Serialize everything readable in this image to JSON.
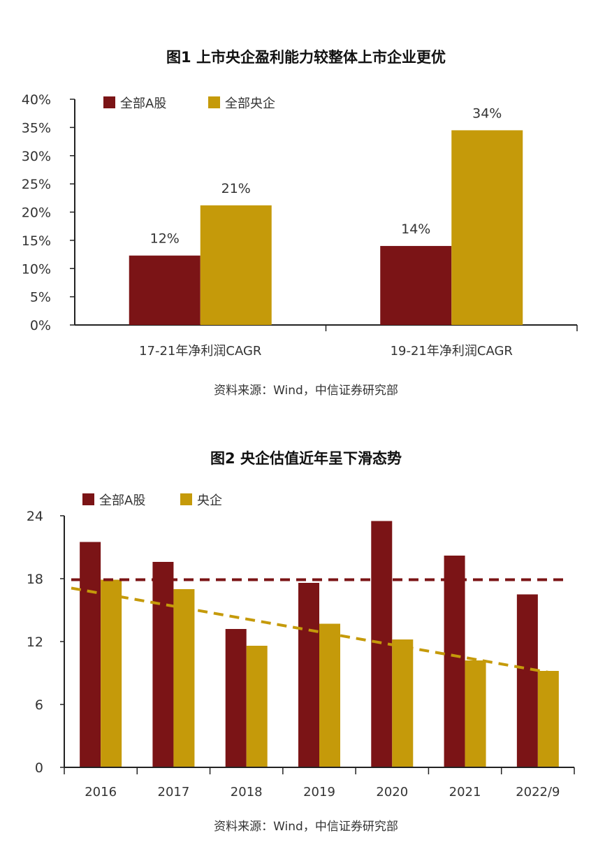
{
  "colors": {
    "a_share": "#7B1416",
    "soe": "#C59A0A"
  },
  "chart_data": [
    {
      "type": "bar",
      "title": "图1  上市央企盈利能力较整体上市企业更优",
      "categories": [
        "17-21年净利润CAGR",
        "19-21年净利润CAGR"
      ],
      "series": [
        {
          "name": "全部A股",
          "values": [
            12.3,
            14.0
          ],
          "labels": [
            "12%",
            "14%"
          ]
        },
        {
          "name": "全部央企",
          "values": [
            21.2,
            34.5
          ],
          "labels": [
            "21%",
            "34%"
          ]
        }
      ],
      "ylim": [
        0,
        40
      ],
      "yticks": [
        "0%",
        "5%",
        "10%",
        "15%",
        "20%",
        "25%",
        "30%",
        "35%",
        "40%"
      ],
      "legend": "top-left",
      "grid": false,
      "source": "资料来源：Wind，中信证券研究部"
    },
    {
      "type": "bar",
      "title": "图2  央企估值近年呈下滑态势",
      "categories": [
        "2016",
        "2017",
        "2018",
        "2019",
        "2020",
        "2021",
        "2022/9"
      ],
      "series": [
        {
          "name": "全部A股",
          "values": [
            21.5,
            19.6,
            13.2,
            17.6,
            23.5,
            20.2,
            16.5
          ]
        },
        {
          "name": "央企",
          "values": [
            17.9,
            17.0,
            11.6,
            13.7,
            12.2,
            10.2,
            9.2
          ]
        }
      ],
      "reference_lines": [
        {
          "style": "dashed-horizontal",
          "value": 17.9
        },
        {
          "style": "dashed-trend",
          "from": 17.1,
          "to": 9.0
        }
      ],
      "ylim": [
        0,
        24
      ],
      "yticks": [
        "0",
        "6",
        "12",
        "18",
        "24"
      ],
      "legend": "top-left",
      "grid": false,
      "source": "资料来源：Wind，中信证券研究部"
    }
  ]
}
